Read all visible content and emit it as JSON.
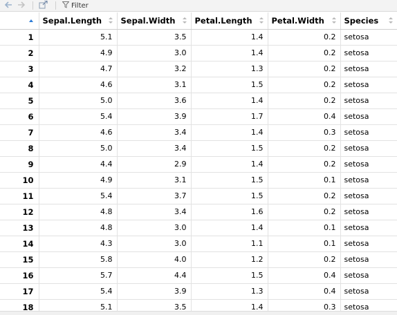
{
  "toolbar": {
    "back_icon": "arrow-left-icon",
    "forward_icon": "arrow-right-icon",
    "popout_icon": "popout-window-icon",
    "filter_icon": "funnel-icon",
    "filter_label": "Filter"
  },
  "table": {
    "columns": [
      "Sepal.Length",
      "Sepal.Width",
      "Petal.Length",
      "Petal.Width",
      "Species"
    ],
    "rows": [
      {
        "idx": "1",
        "cells": [
          "5.1",
          "3.5",
          "1.4",
          "0.2",
          "setosa"
        ]
      },
      {
        "idx": "2",
        "cells": [
          "4.9",
          "3.0",
          "1.4",
          "0.2",
          "setosa"
        ]
      },
      {
        "idx": "3",
        "cells": [
          "4.7",
          "3.2",
          "1.3",
          "0.2",
          "setosa"
        ]
      },
      {
        "idx": "4",
        "cells": [
          "4.6",
          "3.1",
          "1.5",
          "0.2",
          "setosa"
        ]
      },
      {
        "idx": "5",
        "cells": [
          "5.0",
          "3.6",
          "1.4",
          "0.2",
          "setosa"
        ]
      },
      {
        "idx": "6",
        "cells": [
          "5.4",
          "3.9",
          "1.7",
          "0.4",
          "setosa"
        ]
      },
      {
        "idx": "7",
        "cells": [
          "4.6",
          "3.4",
          "1.4",
          "0.3",
          "setosa"
        ]
      },
      {
        "idx": "8",
        "cells": [
          "5.0",
          "3.4",
          "1.5",
          "0.2",
          "setosa"
        ]
      },
      {
        "idx": "9",
        "cells": [
          "4.4",
          "2.9",
          "1.4",
          "0.2",
          "setosa"
        ]
      },
      {
        "idx": "10",
        "cells": [
          "4.9",
          "3.1",
          "1.5",
          "0.1",
          "setosa"
        ]
      },
      {
        "idx": "11",
        "cells": [
          "5.4",
          "3.7",
          "1.5",
          "0.2",
          "setosa"
        ]
      },
      {
        "idx": "12",
        "cells": [
          "4.8",
          "3.4",
          "1.6",
          "0.2",
          "setosa"
        ]
      },
      {
        "idx": "13",
        "cells": [
          "4.8",
          "3.0",
          "1.4",
          "0.1",
          "setosa"
        ]
      },
      {
        "idx": "14",
        "cells": [
          "4.3",
          "3.0",
          "1.1",
          "0.1",
          "setosa"
        ]
      },
      {
        "idx": "15",
        "cells": [
          "5.8",
          "4.0",
          "1.2",
          "0.2",
          "setosa"
        ]
      },
      {
        "idx": "16",
        "cells": [
          "5.7",
          "4.4",
          "1.5",
          "0.4",
          "setosa"
        ]
      },
      {
        "idx": "17",
        "cells": [
          "5.4",
          "3.9",
          "1.3",
          "0.4",
          "setosa"
        ]
      },
      {
        "idx": "18",
        "cells": [
          "5.1",
          "3.5",
          "1.4",
          "0.3",
          "setosa"
        ]
      }
    ]
  },
  "colors": {
    "sort_active": "#2b7bd6",
    "toolbar_bg": "#f3f3f3",
    "grid_line": "#e2e2e2"
  }
}
